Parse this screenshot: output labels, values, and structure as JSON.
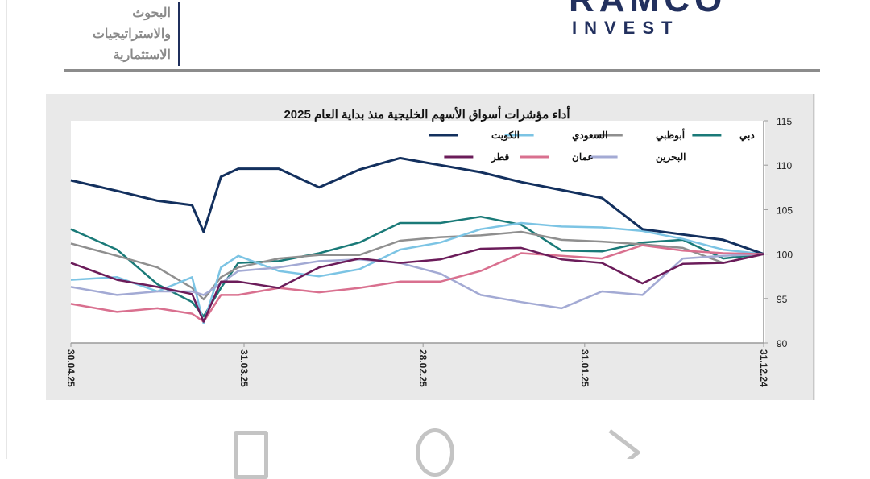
{
  "header": {
    "department_lines": [
      "البحوث",
      "والاستراتيجيات",
      "الاستثمارية"
    ],
    "logo_text": "RAMCO",
    "logo_subtext": "INVEST"
  },
  "chart_data": {
    "type": "line",
    "title": "أداء مؤشرات أسواق الأسهم الخليجية منذ بداية العام 2025",
    "x_axis_reversed": true,
    "x_tick_labels": [
      "30.04.25",
      "31.03.25",
      "28.02.25",
      "31.01.25",
      "31.12.24"
    ],
    "x_ticks": [
      "2025-04-30",
      "2025-03-31",
      "2025-02-28",
      "2025-01-31",
      "2024-12-31"
    ],
    "xlim": [
      "2024-12-31",
      "2025-04-30"
    ],
    "y_axis_side": "right",
    "ylim": [
      90,
      115
    ],
    "y_ticks": [
      90,
      95,
      100,
      105,
      110,
      115
    ],
    "grid": false,
    "legend_placement": "top-right",
    "x": [
      "2024-12-31",
      "2025-01-07",
      "2025-01-14",
      "2025-01-21",
      "2025-01-28",
      "2025-02-04",
      "2025-02-11",
      "2025-02-18",
      "2025-02-25",
      "2025-03-04",
      "2025-03-11",
      "2025-03-18",
      "2025-03-25",
      "2025-04-01",
      "2025-04-04",
      "2025-04-07",
      "2025-04-09",
      "2025-04-15",
      "2025-04-22",
      "2025-04-30"
    ],
    "series": [
      {
        "name": "دبي",
        "color": "#1a7a78",
        "values": [
          100,
          99.5,
          101.6,
          101.3,
          100.3,
          100.4,
          103.3,
          104.2,
          103.5,
          103.5,
          101.3,
          100.1,
          99.2,
          99,
          96.2,
          93,
          94.6,
          96.6,
          100.5,
          102.8
        ]
      },
      {
        "name": "أبوظبي",
        "color": "#8f8f8f",
        "values": [
          100,
          99,
          100.7,
          101.1,
          101.4,
          101.6,
          102.5,
          102.1,
          101.9,
          101.5,
          99.9,
          99.9,
          99.5,
          98.5,
          97.4,
          94.9,
          96.2,
          98.5,
          99.8,
          101.2
        ]
      },
      {
        "name": "السعودي",
        "color": "#7cc4e4",
        "values": [
          100,
          100.5,
          101.7,
          102.6,
          103,
          103.1,
          103.5,
          102.8,
          101.3,
          100.5,
          98.3,
          97.5,
          98.1,
          99.8,
          98.5,
          92.2,
          97.4,
          95.8,
          97.4,
          97.1
        ]
      },
      {
        "name": "الكويت",
        "color": "#13305e",
        "values": [
          100,
          101.6,
          102.2,
          102.8,
          106.3,
          107.2,
          108.1,
          109.2,
          110,
          110.8,
          109.5,
          107.5,
          109.6,
          109.6,
          108.7,
          102.5,
          105.5,
          106,
          107.1,
          108.3
        ]
      },
      {
        "name": "البحرين",
        "color": "#a3aad4",
        "values": [
          100,
          99.8,
          99.5,
          95.4,
          95.8,
          93.9,
          94.6,
          95.4,
          97.8,
          99,
          99.4,
          99.2,
          98.5,
          98.1,
          96.7,
          95.4,
          95.8,
          95.8,
          95.4,
          96.3
        ]
      },
      {
        "name": "عمان",
        "color": "#d9708f",
        "values": [
          100,
          100.1,
          100.4,
          101,
          99.5,
          99.8,
          100.1,
          98.1,
          96.9,
          96.9,
          96.2,
          95.7,
          96.2,
          95.4,
          95.4,
          92.4,
          93.3,
          93.9,
          93.5,
          94.4
        ]
      },
      {
        "name": "قطر",
        "color": "#6b1c5a",
        "values": [
          100,
          99,
          98.9,
          96.7,
          99,
          99.4,
          100.7,
          100.6,
          99.4,
          99,
          99.5,
          98.5,
          96.2,
          96.9,
          96.9,
          92.4,
          95.5,
          96.3,
          97.1,
          99
        ]
      }
    ]
  },
  "navbar": {
    "icons": [
      "recents-square-icon",
      "home-circle-icon",
      "back-triangle-icon"
    ]
  }
}
